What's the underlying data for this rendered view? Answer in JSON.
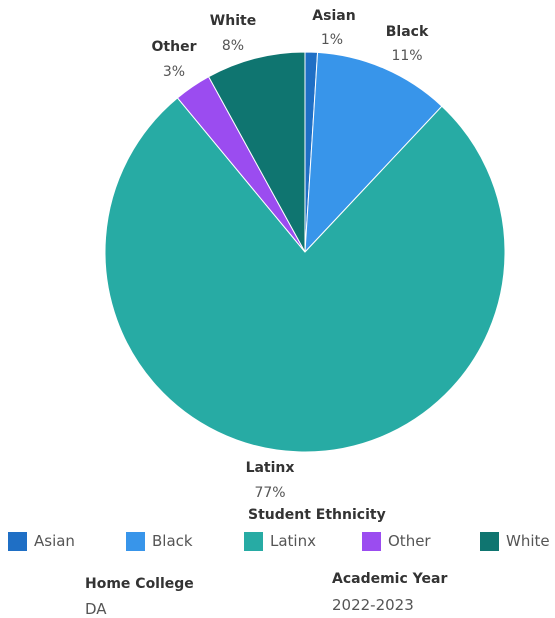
{
  "chart_data": {
    "type": "pie",
    "categories": [
      "Asian",
      "Black",
      "Latinx",
      "Other",
      "White"
    ],
    "values": [
      1,
      11,
      77,
      3,
      8
    ],
    "labels": [
      "1%",
      "11%",
      "77%",
      "3%",
      "8%"
    ],
    "colors": [
      "#1f6fc5",
      "#3895ea",
      "#27aba4",
      "#9b4cf0",
      "#0f7570"
    ],
    "legend_title": "Student Ethnicity",
    "legend_position": "bottom"
  },
  "legend": {
    "title": "Student Ethnicity",
    "items": [
      {
        "label": "Asian",
        "color": "#1f6fc5"
      },
      {
        "label": "Black",
        "color": "#3895ea"
      },
      {
        "label": "Latinx",
        "color": "#27aba4"
      },
      {
        "label": "Other",
        "color": "#9b4cf0"
      },
      {
        "label": "White",
        "color": "#0f7570"
      }
    ]
  },
  "filters": {
    "home_college": {
      "title": "Home College",
      "value": "DA"
    },
    "academic_year": {
      "title": "Academic Year",
      "value": "2022-2023"
    }
  }
}
